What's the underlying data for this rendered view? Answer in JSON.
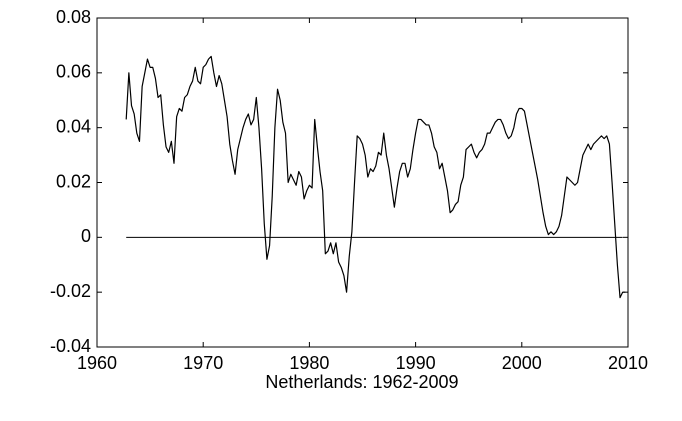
{
  "chart_data": {
    "type": "line",
    "x_label": "Netherlands: 1962-2009",
    "x": [
      1962.75,
      1963,
      1963.25,
      1963.5,
      1963.75,
      1964,
      1964.25,
      1964.5,
      1964.75,
      1965,
      1965.25,
      1965.5,
      1965.75,
      1966,
      1966.25,
      1966.5,
      1966.75,
      1967,
      1967.25,
      1967.5,
      1967.75,
      1968,
      1968.25,
      1968.5,
      1968.75,
      1969,
      1969.25,
      1969.5,
      1969.75,
      1970,
      1970.25,
      1970.5,
      1970.75,
      1971,
      1971.25,
      1971.5,
      1971.75,
      1972,
      1972.25,
      1972.5,
      1972.75,
      1973,
      1973.25,
      1973.5,
      1973.75,
      1974,
      1974.25,
      1974.5,
      1974.75,
      1975,
      1975.25,
      1975.5,
      1975.75,
      1976,
      1976.25,
      1976.5,
      1976.75,
      1977,
      1977.25,
      1977.5,
      1977.75,
      1978,
      1978.25,
      1978.5,
      1978.75,
      1979,
      1979.25,
      1979.5,
      1979.75,
      1980,
      1980.25,
      1980.5,
      1980.75,
      1981,
      1981.25,
      1981.5,
      1981.75,
      1982,
      1982.25,
      1982.5,
      1982.75,
      1983,
      1983.25,
      1983.5,
      1983.75,
      1984,
      1984.25,
      1984.5,
      1984.75,
      1985,
      1985.25,
      1985.5,
      1985.75,
      1986,
      1986.25,
      1986.5,
      1986.75,
      1987,
      1987.25,
      1987.5,
      1987.75,
      1988,
      1988.25,
      1988.5,
      1988.75,
      1989,
      1989.25,
      1989.5,
      1989.75,
      1990,
      1990.25,
      1990.5,
      1990.75,
      1991,
      1991.25,
      1991.5,
      1991.75,
      1992,
      1992.25,
      1992.5,
      1992.75,
      1993,
      1993.25,
      1993.5,
      1993.75,
      1994,
      1994.25,
      1994.5,
      1994.75,
      1995,
      1995.25,
      1995.5,
      1995.75,
      1996,
      1996.25,
      1996.5,
      1996.75,
      1997,
      1997.25,
      1997.5,
      1997.75,
      1998,
      1998.25,
      1998.5,
      1998.75,
      1999,
      1999.25,
      1999.5,
      1999.75,
      2000,
      2000.25,
      2000.5,
      2000.75,
      2001,
      2001.25,
      2001.5,
      2001.75,
      2002,
      2002.25,
      2002.5,
      2002.75,
      2003,
      2003.25,
      2003.5,
      2003.75,
      2004,
      2004.25,
      2004.5,
      2004.75,
      2005,
      2005.25,
      2005.5,
      2005.75,
      2006,
      2006.25,
      2006.5,
      2006.75,
      2007,
      2007.25,
      2007.5,
      2007.75,
      2008,
      2008.25,
      2008.5,
      2008.75,
      2009,
      2009.25,
      2009.5,
      2009.75
    ],
    "series": [
      {
        "color": "#000000",
        "values": [
          0.043,
          0.06,
          0.048,
          0.045,
          0.038,
          0.035,
          0.055,
          0.06,
          0.065,
          0.062,
          0.062,
          0.058,
          0.051,
          0.052,
          0.041,
          0.033,
          0.031,
          0.035,
          0.027,
          0.044,
          0.047,
          0.046,
          0.051,
          0.052,
          0.055,
          0.057,
          0.062,
          0.057,
          0.056,
          0.062,
          0.063,
          0.065,
          0.066,
          0.06,
          0.055,
          0.059,
          0.056,
          0.05,
          0.044,
          0.034,
          0.028,
          0.023,
          0.032,
          0.036,
          0.04,
          0.043,
          0.045,
          0.041,
          0.043,
          0.051,
          0.04,
          0.025,
          0.005,
          -0.008,
          -0.003,
          0.015,
          0.04,
          0.054,
          0.05,
          0.042,
          0.038,
          0.02,
          0.023,
          0.021,
          0.019,
          0.024,
          0.022,
          0.014,
          0.017,
          0.019,
          0.018,
          0.043,
          0.033,
          0.024,
          0.017,
          -0.006,
          -0.005,
          -0.002,
          -0.006,
          -0.002,
          -0.009,
          -0.011,
          -0.014,
          -0.02,
          -0.007,
          0.002,
          0.02,
          0.037,
          0.036,
          0.034,
          0.03,
          0.022,
          0.025,
          0.024,
          0.026,
          0.031,
          0.03,
          0.038,
          0.03,
          0.025,
          0.018,
          0.011,
          0.018,
          0.024,
          0.027,
          0.027,
          0.022,
          0.025,
          0.032,
          0.038,
          0.043,
          0.043,
          0.042,
          0.041,
          0.041,
          0.038,
          0.033,
          0.031,
          0.025,
          0.027,
          0.022,
          0.017,
          0.009,
          0.01,
          0.012,
          0.013,
          0.019,
          0.022,
          0.032,
          0.033,
          0.034,
          0.031,
          0.029,
          0.031,
          0.032,
          0.034,
          0.038,
          0.038,
          0.04,
          0.042,
          0.043,
          0.043,
          0.041,
          0.038,
          0.036,
          0.037,
          0.04,
          0.045,
          0.047,
          0.047,
          0.046,
          0.041,
          0.036,
          0.031,
          0.026,
          0.021,
          0.015,
          0.009,
          0.004,
          0.001,
          0.002,
          0.001,
          0.002,
          0.004,
          0.008,
          0.015,
          0.022,
          0.021,
          0.02,
          0.019,
          0.02,
          0.025,
          0.03,
          0.032,
          0.034,
          0.032,
          0.034,
          0.035,
          0.036,
          0.037,
          0.036,
          0.037,
          0.034,
          0.02,
          0.005,
          -0.01,
          -0.022,
          -0.02,
          -0.02
        ]
      }
    ],
    "reference_line": {
      "y": 0,
      "x": [
        1962.75,
        2009.5
      ],
      "color": "#000000"
    },
    "xlim": [
      1960,
      2010
    ],
    "xticks": [
      1960,
      1970,
      1980,
      1990,
      2000,
      2010
    ],
    "ylim": [
      -0.04,
      0.08
    ],
    "yticks": [
      -0.04,
      -0.02,
      0,
      0.02,
      0.04,
      0.06,
      0.08
    ],
    "grid": false
  }
}
